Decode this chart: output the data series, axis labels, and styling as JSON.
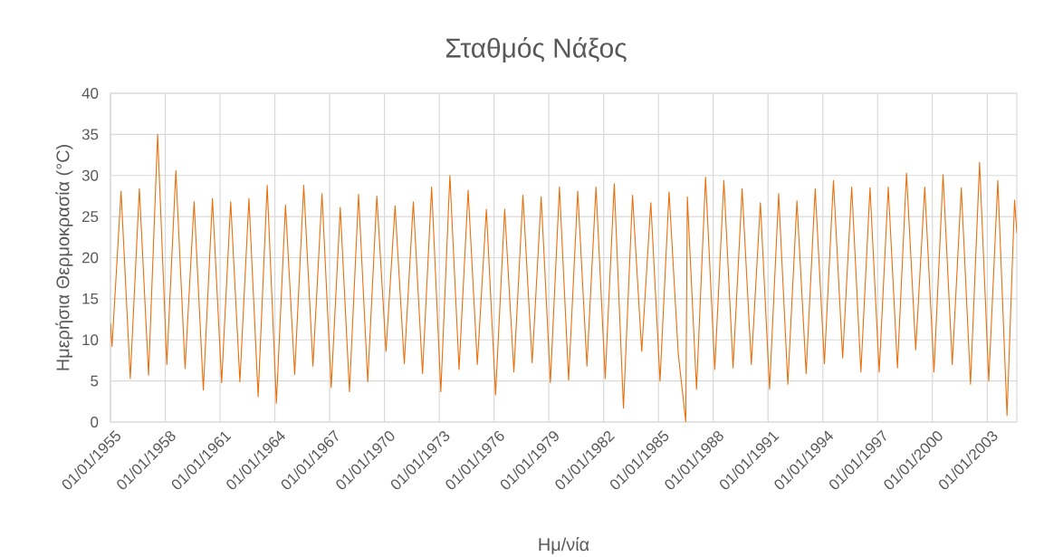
{
  "chart_data": {
    "type": "line",
    "title": "Σταθμός Νάξος",
    "xlabel": "Ημ/νία",
    "ylabel": "Ημερήσια Θερμοκρασία (°C)",
    "x": [
      "1955-01-01",
      "1955-02-01",
      "1955-08-01",
      "1956-02-01",
      "1956-08-01",
      "1957-02-01",
      "1957-08-01",
      "1958-02-01",
      "1958-08-01",
      "1959-02-01",
      "1959-08-01",
      "1960-02-01",
      "1960-08-01",
      "1961-02-01",
      "1961-08-01",
      "1962-02-01",
      "1962-08-01",
      "1963-02-01",
      "1963-08-01",
      "1964-02-01",
      "1964-08-01",
      "1965-02-01",
      "1965-08-01",
      "1966-02-01",
      "1966-08-01",
      "1967-02-01",
      "1967-08-01",
      "1968-02-01",
      "1968-08-01",
      "1969-02-01",
      "1969-08-01",
      "1970-02-01",
      "1970-08-01",
      "1971-02-01",
      "1971-08-01",
      "1972-02-01",
      "1972-08-01",
      "1973-02-01",
      "1973-08-01",
      "1974-02-01",
      "1974-08-01",
      "1975-02-01",
      "1975-08-01",
      "1976-02-01",
      "1976-08-01",
      "1977-02-01",
      "1977-08-01",
      "1978-02-01",
      "1978-08-01",
      "1979-02-01",
      "1979-08-01",
      "1980-02-01",
      "1980-08-01",
      "1981-02-01",
      "1981-08-01",
      "1982-02-01",
      "1982-08-01",
      "1983-02-01",
      "1983-08-01",
      "1984-02-01",
      "1984-08-01",
      "1985-02-01",
      "1985-08-01",
      "1986-02-01",
      "1986-07-01",
      "1986-08-01",
      "1987-02-01",
      "1987-08-01",
      "1988-02-01",
      "1988-08-01",
      "1989-02-01",
      "1989-08-01",
      "1990-02-01",
      "1990-08-01",
      "1991-02-01",
      "1991-08-01",
      "1992-02-01",
      "1992-08-01",
      "1993-02-01",
      "1993-08-01",
      "1994-02-01",
      "1994-08-01",
      "1995-02-01",
      "1995-08-01",
      "1996-02-01",
      "1996-08-01",
      "1997-02-01",
      "1997-08-01",
      "1998-02-01",
      "1998-08-01",
      "1999-02-01",
      "1999-08-01",
      "2000-02-01",
      "2000-08-01",
      "2001-02-01",
      "2001-08-01",
      "2002-02-01",
      "2002-08-01",
      "2003-02-01",
      "2003-08-01",
      "2004-02-01",
      "2004-07-01",
      "2004-08-15"
    ],
    "series": [
      {
        "color": "#e8700e",
        "values": [
          12,
          9.2,
          28.1,
          5.3,
          28.4,
          5.7,
          35,
          7,
          30.6,
          6.5,
          26.8,
          3.9,
          27.2,
          4.8,
          26.8,
          4.9,
          27.2,
          3.1,
          28.8,
          2.3,
          26.4,
          5.8,
          28.8,
          6.8,
          27.8,
          4.2,
          26.1,
          3.7,
          27.7,
          4.9,
          27.5,
          8.6,
          26.3,
          7.1,
          26.8,
          5.9,
          28.6,
          3.7,
          30,
          6.4,
          28.2,
          7,
          25.9,
          3.3,
          25.9,
          6.1,
          27.6,
          7.2,
          27.4,
          4.8,
          28.6,
          5.1,
          28.1,
          6.8,
          28.6,
          5.3,
          29,
          1.7,
          27.6,
          8.6,
          26.7,
          5,
          28,
          8.3,
          0,
          27.4,
          4,
          29.8,
          6.4,
          29.4,
          6.6,
          28.4,
          7,
          26.7,
          4,
          27.8,
          4.6,
          26.9,
          5.9,
          28.4,
          7.1,
          29.4,
          7.8,
          28.6,
          6.1,
          28.5,
          6.1,
          28.6,
          6.6,
          30.3,
          8.8,
          28.6,
          6.1,
          30.1,
          7,
          28.5,
          4.6,
          31.6,
          5,
          29.4,
          0.8,
          27,
          23
        ]
      }
    ],
    "xlim": [
      "1955-01-01",
      "2004-08-15"
    ],
    "xticks": [
      {
        "value": "1955-01-01",
        "label": "01/01/1955"
      },
      {
        "value": "1958-01-01",
        "label": "01/01/1958"
      },
      {
        "value": "1961-01-01",
        "label": "01/01/1961"
      },
      {
        "value": "1964-01-01",
        "label": "01/01/1964"
      },
      {
        "value": "1967-01-01",
        "label": "01/01/1967"
      },
      {
        "value": "1970-01-01",
        "label": "01/01/1970"
      },
      {
        "value": "1973-01-01",
        "label": "01/01/1973"
      },
      {
        "value": "1976-01-01",
        "label": "01/01/1976"
      },
      {
        "value": "1979-01-01",
        "label": "01/01/1979"
      },
      {
        "value": "1982-01-01",
        "label": "01/01/1982"
      },
      {
        "value": "1985-01-01",
        "label": "01/01/1985"
      },
      {
        "value": "1988-01-01",
        "label": "01/01/1988"
      },
      {
        "value": "1991-01-01",
        "label": "01/01/1991"
      },
      {
        "value": "1994-01-01",
        "label": "01/01/1994"
      },
      {
        "value": "1997-01-01",
        "label": "01/01/1997"
      },
      {
        "value": "2000-01-01",
        "label": "01/01/2000"
      },
      {
        "value": "2003-01-01",
        "label": "01/01/2003"
      }
    ],
    "ylim": [
      0,
      40
    ],
    "yticks": [
      0,
      5,
      10,
      15,
      20,
      25,
      30,
      35,
      40
    ],
    "grid": true
  }
}
